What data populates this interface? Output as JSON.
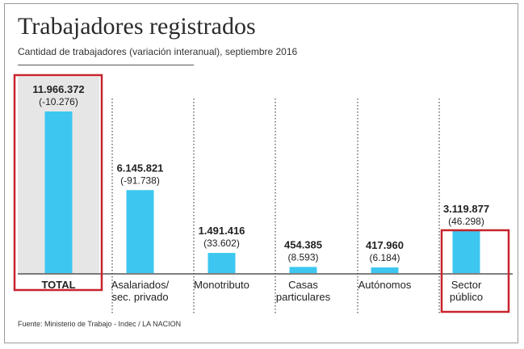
{
  "title": "Trabajadores registrados",
  "subtitle": "Cantidad de trabajadores (variación interanual), septiembre 2016",
  "source": "Fuente: Ministerio de Trabajo - Indec / LA NACION",
  "colors": {
    "bar": "#3dc7f0",
    "highlight_bg": "#e6e6e6",
    "highlight_border": "#c8232c",
    "axis": "#333333",
    "divider": "#555555"
  },
  "chart_data": {
    "type": "bar",
    "title": "Trabajadores registrados",
    "subtitle": "Cantidad de trabajadores (variación interanual), septiembre 2016",
    "categories": [
      "TOTAL",
      "Asalariados/\nsec. privado",
      "Monotributo",
      "Casas\nparticulares",
      "Autónomos",
      "Sector\npúblico"
    ],
    "values": [
      11966372,
      6145821,
      1491416,
      454385,
      417960,
      3119877
    ],
    "value_labels": [
      "11.966.372",
      "6.145.821",
      "1.491.416",
      "454.385",
      "417.960",
      "3.119.877"
    ],
    "variation_labels": [
      "(-10.276)",
      "(-91.738)",
      "(33.602)",
      "(8.593)",
      "(6.184)",
      "(46.298)"
    ],
    "variation": [
      -10276,
      -91738,
      33602,
      8593,
      6184,
      46298
    ],
    "highlighted": [
      "TOTAL",
      "Sector\npúblico"
    ],
    "grid": false,
    "legend": "none"
  }
}
